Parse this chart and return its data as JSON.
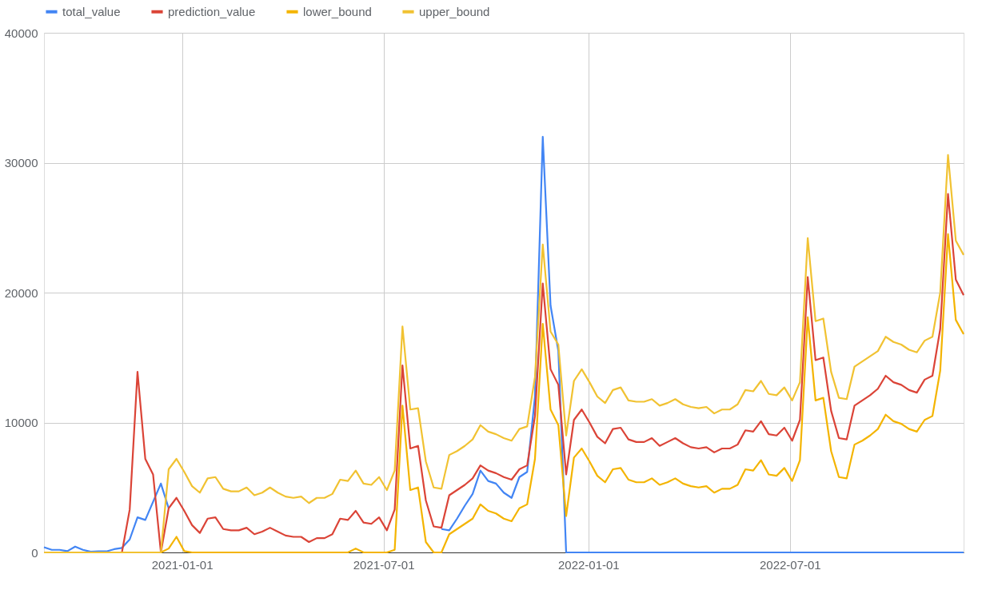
{
  "chart_data": {
    "type": "line",
    "x": [
      "2020-08-30",
      "2020-09-06",
      "2020-09-13",
      "2020-09-20",
      "2020-09-27",
      "2020-10-04",
      "2020-10-11",
      "2020-10-18",
      "2020-10-25",
      "2020-11-01",
      "2020-11-08",
      "2020-11-15",
      "2020-11-22",
      "2020-11-29",
      "2020-12-06",
      "2020-12-13",
      "2020-12-20",
      "2020-12-27",
      "2021-01-03",
      "2021-01-10",
      "2021-01-17",
      "2021-01-24",
      "2021-01-31",
      "2021-02-07",
      "2021-02-14",
      "2021-02-21",
      "2021-02-28",
      "2021-03-07",
      "2021-03-14",
      "2021-03-21",
      "2021-03-28",
      "2021-04-04",
      "2021-04-11",
      "2021-04-18",
      "2021-04-25",
      "2021-05-02",
      "2021-05-09",
      "2021-05-16",
      "2021-05-23",
      "2021-05-30",
      "2021-06-06",
      "2021-06-13",
      "2021-06-20",
      "2021-06-27",
      "2021-07-04",
      "2021-07-11",
      "2021-07-18",
      "2021-07-25",
      "2021-08-01",
      "2021-08-08",
      "2021-08-15",
      "2021-08-22",
      "2021-08-29",
      "2021-09-05",
      "2021-09-12",
      "2021-09-19",
      "2021-09-26",
      "2021-10-03",
      "2021-10-10",
      "2021-10-17",
      "2021-10-24",
      "2021-10-31",
      "2021-11-07",
      "2021-11-14",
      "2021-11-21",
      "2021-11-28",
      "2021-12-05",
      "2021-12-12",
      "2021-12-19",
      "2021-12-26",
      "2022-01-02",
      "2022-01-09",
      "2022-01-16",
      "2022-01-23",
      "2022-01-30",
      "2022-02-06",
      "2022-02-13",
      "2022-02-20",
      "2022-02-27",
      "2022-03-06",
      "2022-03-13",
      "2022-03-20",
      "2022-03-27",
      "2022-04-03",
      "2022-04-10",
      "2022-04-17",
      "2022-04-24",
      "2022-05-01",
      "2022-05-08",
      "2022-05-15",
      "2022-05-22",
      "2022-05-29",
      "2022-06-05",
      "2022-06-12",
      "2022-06-19",
      "2022-06-26",
      "2022-07-03",
      "2022-07-10",
      "2022-07-17",
      "2022-07-24",
      "2022-07-31",
      "2022-08-07",
      "2022-08-14",
      "2022-08-21",
      "2022-08-28",
      "2022-09-04",
      "2022-09-11",
      "2022-09-18",
      "2022-09-25",
      "2022-10-02",
      "2022-10-09",
      "2022-10-16",
      "2022-10-23",
      "2022-10-30",
      "2022-11-06",
      "2022-11-13",
      "2022-11-20",
      "2022-11-27",
      "2022-12-04"
    ],
    "xlim": [
      "2020-08-30",
      "2022-12-04"
    ],
    "xticks": [
      "2021-01-01",
      "2021-07-01",
      "2022-01-01",
      "2022-07-01"
    ],
    "ylim": [
      0,
      40000
    ],
    "yticks": [
      0,
      10000,
      20000,
      30000,
      40000
    ],
    "grid": true,
    "legend": "top",
    "series": [
      {
        "name": "total_value",
        "color": "#4285f4",
        "values": [
          400,
          200,
          200,
          100,
          450,
          200,
          50,
          80,
          80,
          250,
          350,
          1000,
          2700,
          2500,
          3900,
          5300,
          3400,
          null,
          null,
          null,
          null,
          null,
          null,
          null,
          null,
          null,
          null,
          null,
          null,
          null,
          null,
          null,
          null,
          null,
          null,
          null,
          null,
          null,
          null,
          null,
          null,
          null,
          null,
          null,
          null,
          null,
          null,
          null,
          null,
          null,
          null,
          1800,
          1700,
          2600,
          3600,
          4500,
          6300,
          5500,
          5300,
          4600,
          4200,
          5800,
          6200,
          12000,
          32000,
          19000,
          15500,
          0,
          0,
          0,
          0,
          0,
          0,
          0,
          0,
          0,
          0,
          0,
          0,
          0,
          0,
          0,
          0,
          0,
          0,
          0,
          0,
          0,
          0,
          0,
          0,
          0,
          0,
          0,
          0,
          0,
          0,
          0,
          0,
          0,
          0,
          0,
          0,
          0,
          0,
          0,
          0,
          0,
          0,
          0,
          0,
          0,
          0,
          0,
          0,
          0,
          0,
          0,
          0
        ]
      },
      {
        "name": "prediction_value",
        "color": "#db4437",
        "values": [
          null,
          null,
          null,
          null,
          null,
          null,
          null,
          null,
          null,
          null,
          0,
          3300,
          13900,
          7200,
          6000,
          0,
          3400,
          4200,
          3200,
          2100,
          1500,
          2600,
          2700,
          1800,
          1700,
          1700,
          1900,
          1400,
          1600,
          1900,
          1600,
          1300,
          1200,
          1200,
          800,
          1100,
          1100,
          1400,
          2600,
          2500,
          3200,
          2300,
          2200,
          2700,
          1700,
          3300,
          14400,
          8000,
          8200,
          4000,
          2000,
          1900,
          4400,
          4800,
          5200,
          5700,
          6700,
          6300,
          6100,
          5800,
          5600,
          6400,
          6700,
          10500,
          20700,
          14100,
          12900,
          6000,
          10200,
          11000,
          10000,
          8900,
          8400,
          9500,
          9600,
          8700,
          8500,
          8500,
          8800,
          8200,
          8500,
          8800,
          8400,
          8100,
          8000,
          8100,
          7700,
          8000,
          8000,
          8300,
          9400,
          9300,
          10100,
          9100,
          9000,
          9600,
          8600,
          10200,
          21200,
          14800,
          15000,
          10900,
          8800,
          8700,
          11300,
          11700,
          12100,
          12600,
          13600,
          13100,
          12900,
          12500,
          12300,
          13300,
          13600,
          17200,
          27600,
          21000,
          19800
        ]
      },
      {
        "name": "lower_bound",
        "color": "#f4b400",
        "values": [
          0,
          0,
          0,
          0,
          0,
          0,
          0,
          0,
          0,
          0,
          0,
          0,
          0,
          0,
          0,
          0,
          300,
          1200,
          100,
          0,
          0,
          0,
          0,
          0,
          0,
          0,
          0,
          0,
          0,
          0,
          0,
          0,
          0,
          0,
          0,
          0,
          0,
          0,
          0,
          0,
          300,
          0,
          0,
          0,
          0,
          200,
          11300,
          4800,
          5000,
          800,
          0,
          0,
          1400,
          1800,
          2200,
          2600,
          3700,
          3200,
          3000,
          2600,
          2400,
          3400,
          3700,
          7200,
          17600,
          11000,
          9800,
          2800,
          7300,
          8000,
          7000,
          5900,
          5400,
          6400,
          6500,
          5600,
          5400,
          5400,
          5700,
          5200,
          5400,
          5700,
          5300,
          5100,
          5000,
          5100,
          4600,
          4900,
          4900,
          5200,
          6400,
          6300,
          7100,
          6000,
          5900,
          6500,
          5500,
          7100,
          18100,
          11700,
          11900,
          7800,
          5800,
          5700,
          8300,
          8600,
          9000,
          9500,
          10600,
          10100,
          9900,
          9500,
          9300,
          10200,
          10500,
          14000,
          24500,
          17900,
          16800
        ]
      },
      {
        "name": "upper_bound",
        "color": "#f1c232",
        "values": [
          0,
          0,
          0,
          0,
          0,
          0,
          0,
          0,
          0,
          0,
          0,
          0,
          0,
          0,
          0,
          0,
          6400,
          7200,
          6200,
          5100,
          4600,
          5700,
          5800,
          4900,
          4700,
          4700,
          5000,
          4400,
          4600,
          5000,
          4600,
          4300,
          4200,
          4300,
          3800,
          4200,
          4200,
          4500,
          5600,
          5500,
          6300,
          5300,
          5200,
          5800,
          4800,
          6300,
          17400,
          11000,
          11100,
          7000,
          5000,
          4900,
          7500,
          7800,
          8200,
          8700,
          9800,
          9300,
          9100,
          8800,
          8600,
          9500,
          9700,
          13500,
          23700,
          17000,
          16000,
          9000,
          13200,
          14100,
          13100,
          12000,
          11500,
          12500,
          12700,
          11700,
          11600,
          11600,
          11800,
          11300,
          11500,
          11800,
          11400,
          11200,
          11100,
          11200,
          10700,
          11000,
          11000,
          11400,
          12500,
          12400,
          13200,
          12200,
          12100,
          12700,
          11700,
          13100,
          24200,
          17800,
          18000,
          13900,
          11900,
          11800,
          14300,
          14700,
          15100,
          15500,
          16600,
          16200,
          16000,
          15600,
          15400,
          16300,
          16600,
          20000,
          30600,
          24000,
          22900
        ]
      }
    ]
  }
}
